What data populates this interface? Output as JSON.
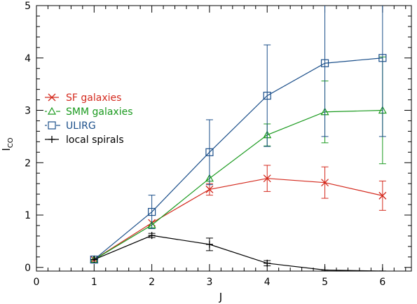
{
  "chart_data": {
    "type": "line",
    "xlabel": "J",
    "ylabel": "I",
    "ylabel_sub": "CO",
    "xlim": [
      0,
      6.5
    ],
    "ylim": [
      -0.07,
      5
    ],
    "xticks": [
      0,
      1,
      2,
      3,
      4,
      5,
      6
    ],
    "yticks": [
      0,
      1,
      2,
      3,
      4,
      5
    ],
    "grid": false,
    "legend_position": "middle-left",
    "series": [
      {
        "name": "SF galaxies",
        "color": "#d42a1e",
        "marker": "x",
        "x": [
          1,
          2,
          3,
          4,
          5,
          6
        ],
        "y": [
          0.15,
          0.85,
          1.49,
          1.7,
          1.62,
          1.37
        ],
        "err": [
          null,
          null,
          0.11,
          0.25,
          0.3,
          0.28
        ]
      },
      {
        "name": "SMM galaxies",
        "color": "#1a9a1e",
        "marker": "triangle",
        "x": [
          1,
          2,
          3,
          4,
          5,
          6
        ],
        "y": [
          0.15,
          0.81,
          1.7,
          2.53,
          2.97,
          3.0
        ],
        "err": [
          null,
          null,
          null,
          0.21,
          0.59,
          1.02
        ]
      },
      {
        "name": "ULIRG",
        "color": "#1b4f8a",
        "marker": "square",
        "x": [
          1,
          2,
          3,
          4,
          5,
          6
        ],
        "y": [
          0.15,
          1.06,
          2.2,
          3.28,
          3.9,
          4.0
        ],
        "err": [
          null,
          0.32,
          0.62,
          0.97,
          1.4,
          1.5
        ]
      },
      {
        "name": "local spirals",
        "color": "#000000",
        "marker": "plus",
        "x": [
          1,
          2,
          3,
          4,
          5,
          6
        ],
        "y": [
          0.15,
          0.61,
          0.44,
          0.08,
          -0.05,
          -0.07
        ],
        "err": [
          null,
          0.04,
          0.12,
          0.05,
          null,
          null
        ]
      }
    ]
  }
}
